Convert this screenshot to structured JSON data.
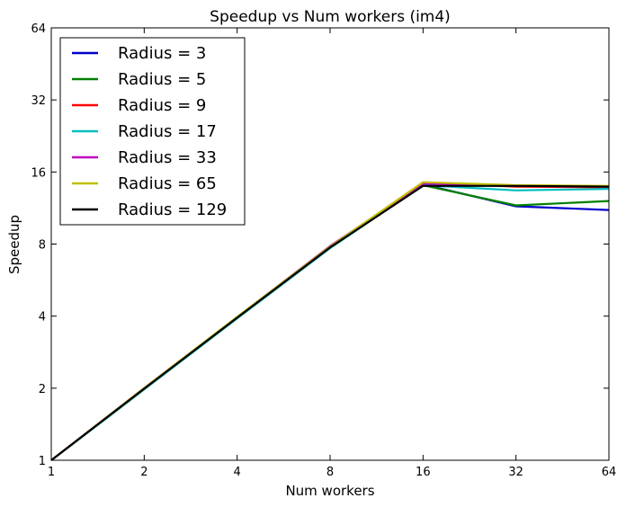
{
  "chart_data": {
    "type": "line",
    "title": "Speedup vs Num workers (im4)",
    "xlabel": "Num workers",
    "ylabel": "Speedup",
    "x_scale": "log2",
    "y_scale": "log2",
    "xlim": [
      1,
      64
    ],
    "ylim": [
      1,
      64
    ],
    "x": [
      1,
      2,
      4,
      8,
      16,
      32,
      64
    ],
    "x_ticks": [
      "1",
      "2",
      "4",
      "8",
      "16",
      "32",
      "64"
    ],
    "y_ticks": [
      "1",
      "2",
      "4",
      "8",
      "16",
      "32",
      "64"
    ],
    "grid": false,
    "legend_position": "top-left",
    "series": [
      {
        "name": "Radius = 3",
        "color": "#0000cc",
        "values": [
          1,
          1.98,
          3.92,
          7.7,
          14.2,
          11.5,
          11.1
        ]
      },
      {
        "name": "Radius = 5",
        "color": "#008000",
        "values": [
          1,
          1.98,
          3.92,
          7.7,
          14.1,
          11.6,
          12.1
        ]
      },
      {
        "name": "Radius = 9",
        "color": "#ff0000",
        "values": [
          1,
          2.0,
          3.96,
          7.8,
          14.4,
          13.9,
          13.8
        ]
      },
      {
        "name": "Radius = 17",
        "color": "#00bfbf",
        "values": [
          1,
          1.98,
          3.92,
          7.7,
          14.1,
          13.4,
          13.6
        ]
      },
      {
        "name": "Radius = 33",
        "color": "#bf00bf",
        "values": [
          1,
          2.0,
          3.96,
          7.85,
          14.3,
          14.0,
          13.9
        ]
      },
      {
        "name": "Radius = 65",
        "color": "#bfbf00",
        "values": [
          1,
          2.0,
          3.97,
          7.8,
          14.5,
          14.1,
          14.0
        ]
      },
      {
        "name": "Radius = 129",
        "color": "#000000",
        "values": [
          1,
          1.99,
          3.94,
          7.75,
          14.0,
          14.0,
          13.9
        ]
      }
    ]
  }
}
